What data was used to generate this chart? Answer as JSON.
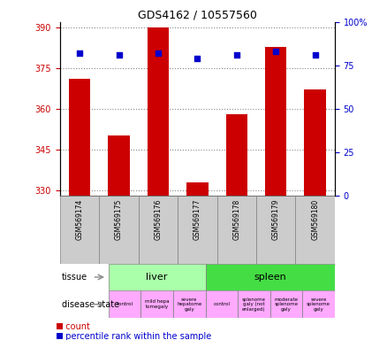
{
  "title": "GDS4162 / 10557560",
  "samples": [
    "GSM569174",
    "GSM569175",
    "GSM569176",
    "GSM569177",
    "GSM569178",
    "GSM569179",
    "GSM569180"
  ],
  "counts": [
    371,
    350,
    390,
    333,
    358,
    383,
    367
  ],
  "percentile_ranks": [
    82,
    81,
    82,
    79,
    81,
    83,
    81
  ],
  "ymin": 328,
  "ymax": 392,
  "yticks": [
    330,
    345,
    360,
    375,
    390
  ],
  "y2ticks": [
    0,
    25,
    50,
    75,
    100
  ],
  "bar_color": "#cc0000",
  "dot_color": "#0000cc",
  "liver_color": "#aaffaa",
  "spleen_color": "#44dd44",
  "sample_bg_color": "#cccccc",
  "disease_color": "#ffaaff",
  "grid_color": "#888888",
  "tick_color_left": "#cc0000",
  "tick_color_right": "#0000cc",
  "bar_width": 0.55,
  "legend_count_color": "#cc0000",
  "legend_pct_color": "#0000cc"
}
